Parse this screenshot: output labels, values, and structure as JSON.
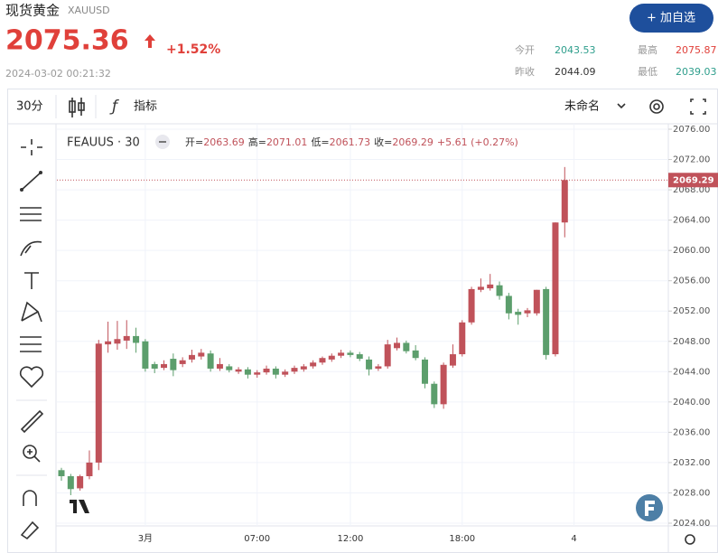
{
  "header": {
    "title": "现货黄金",
    "symbol": "XAUUSD",
    "price": "2075.36",
    "change": "+1.52%",
    "time": "2024-03-02 00:21:32",
    "button": "+ 加自选",
    "stats": [
      {
        "label": "今开",
        "value": "2043.53"
      },
      {
        "label": "最高",
        "value": "2075.87"
      },
      {
        "label": "昨收",
        "value": "2044.09"
      },
      {
        "label": "最低",
        "value": "2039.03"
      }
    ]
  },
  "toolbar": {
    "interval": "30分",
    "indicators": "指标",
    "layout": "未命名"
  },
  "chart_data": {
    "type": "candlestick",
    "title": "FEAUUS · 30",
    "ohlc_labels": [
      "开=",
      "高=",
      "低=",
      "收="
    ],
    "change": "+5.61 (+0.27%)",
    "up_color": "#c0525a",
    "down_color": "#5c9e6c",
    "grid": true,
    "categories": [
      null,
      null,
      null,
      null,
      null,
      null,
      null,
      null,
      null,
      "3月",
      null,
      null,
      null,
      null,
      null,
      null,
      null,
      null,
      null,
      null,
      null,
      "07:00",
      null,
      null,
      null,
      null,
      null,
      null,
      null,
      null,
      null,
      "12:00",
      null,
      null,
      null,
      null,
      null,
      null,
      null,
      null,
      null,
      null,
      null,
      "18:00",
      null,
      null,
      null,
      null,
      null,
      null,
      null,
      null,
      null,
      null,
      null,
      "4"
    ],
    "open": [
      2031,
      2030.2,
      2028.6,
      2030.2,
      2032,
      2047.6,
      2047.7,
      2048.1,
      2048.7,
      2048,
      2045,
      2044.5,
      2045.7,
      2045,
      2045.6,
      2046,
      2046.4,
      2044.4,
      2044.7,
      2044,
      2044.3,
      2043.6,
      2043.9,
      2044.4,
      2043.6,
      2044,
      2044.3,
      2044.7,
      2045.2,
      2045.6,
      2046.1,
      2046.5,
      2046.3,
      2045.6,
      2044.4,
      2044.7,
      2047.1,
      2047.8,
      2046.8,
      2045.6,
      2042.4,
      2039.7,
      2044.8,
      2046.3,
      2050.5,
      2054.8,
      2055,
      2055.4,
      2054,
      2051.9,
      2051.7,
      2051.7,
      2054.9,
      2046.3,
      2063.69,
      null
    ],
    "high": [
      2031.3,
      2030.5,
      2030.4,
      2033.6,
      2048.2,
      2050.6,
      2050.7,
      2050.8,
      2049.8,
      2048.3,
      2045.3,
      2045.5,
      2046.4,
      2045.9,
      2046.9,
      2047,
      2046.8,
      2045.8,
      2045,
      2044.6,
      2044.6,
      2044.2,
      2044.8,
      2044.7,
      2044.3,
      2044.8,
      2045,
      2045.5,
      2046,
      2046.4,
      2046.9,
      2046.8,
      2046.6,
      2046,
      2045,
      2048.2,
      2048.5,
      2048.1,
      2047.5,
      2045.9,
      2042.7,
      2045.2,
      2047.6,
      2050.8,
      2055.2,
      2056.3,
      2056.9,
      2055.9,
      2054.4,
      2052.3,
      2052.4,
      2054.8,
      2055.2,
      2063.7,
      2071.01,
      null
    ],
    "low": [
      2029.6,
      2027.6,
      2028.3,
      2029.8,
      2031,
      2046.5,
      2046.9,
      2047,
      2046.5,
      2044,
      2043.8,
      2044.2,
      2043.4,
      2044.6,
      2045.2,
      2045.6,
      2044,
      2044.1,
      2043.9,
      2043.7,
      2043.1,
      2043.2,
      2043.6,
      2043.1,
      2043.3,
      2043.7,
      2044,
      2044.4,
      2044.9,
      2045.3,
      2045.8,
      2045.9,
      2045.4,
      2043.5,
      2044.1,
      2044.4,
      2046.8,
      2046.4,
      2045.5,
      2041.8,
      2039.2,
      2039.1,
      2044.5,
      2046,
      2050.2,
      2054.5,
      2054.7,
      2053.5,
      2050.9,
      2050.2,
      2051.2,
      2051.4,
      2045.6,
      2046,
      2061.73,
      null
    ],
    "close": [
      2030.2,
      2028.5,
      2030.2,
      2032,
      2047.7,
      2048,
      2048.3,
      2048.7,
      2047.8,
      2044.4,
      2044.4,
      2045,
      2044.2,
      2045.5,
      2046.2,
      2046.5,
      2044.4,
      2045,
      2044.2,
      2044.3,
      2043.6,
      2043.9,
      2044.4,
      2043.6,
      2044,
      2044.5,
      2044.7,
      2045.2,
      2045.8,
      2046.1,
      2046.5,
      2046.2,
      2045.7,
      2044.3,
      2044.7,
      2047.6,
      2047.8,
      2046.7,
      2045.8,
      2042.4,
      2039.7,
      2044.9,
      2046.3,
      2050.5,
      2054.9,
      2055.2,
      2055.5,
      2054,
      2051.7,
      2051.5,
      2052.1,
      2054.8,
      2046.2,
      2063.69,
      2069.29,
      null
    ],
    "ylim": [
      2024,
      2076
    ],
    "yticks": [
      {
        "value": 2024,
        "label": "2024.00"
      },
      {
        "value": 2028,
        "label": "2028.00"
      },
      {
        "value": 2032,
        "label": "2032.00"
      },
      {
        "value": 2036,
        "label": "2036.00"
      },
      {
        "value": 2040,
        "label": "2040.00"
      },
      {
        "value": 2044,
        "label": "2044.00"
      },
      {
        "value": 2048,
        "label": "2048.00"
      },
      {
        "value": 2052,
        "label": "2052.00"
      },
      {
        "value": 2056,
        "label": "2056.00"
      },
      {
        "value": 2060,
        "label": "2060.00"
      },
      {
        "value": 2064,
        "label": "2064.00"
      },
      {
        "value": 2068,
        "label": "2068.00"
      },
      {
        "value": 2072,
        "label": "2072.00"
      },
      {
        "value": 2076,
        "label": "2076.00"
      }
    ]
  }
}
